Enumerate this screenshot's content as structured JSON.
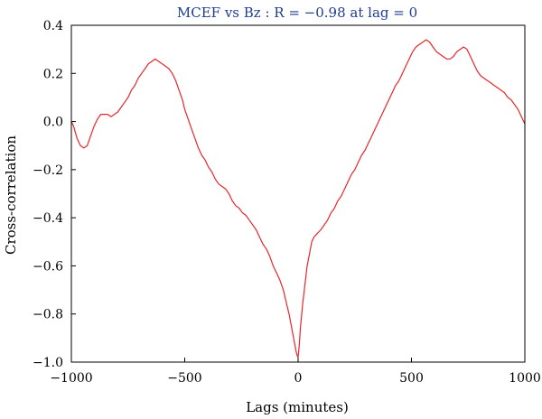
{
  "chart_data": {
    "type": "line",
    "title": "MCEF vs Bz : R = −0.98 at lag = 0",
    "xlabel": "Lags (minutes)",
    "ylabel": "Cross-correlation",
    "xlim": [
      -1000,
      1000
    ],
    "ylim": [
      -1.0,
      0.4
    ],
    "xticks": [
      -1000,
      -500,
      0,
      500,
      1000
    ],
    "xtick_labels": [
      "−1000",
      "−500",
      "0",
      "500",
      "1000"
    ],
    "yticks": [
      0.4,
      0.2,
      0.0,
      -0.2,
      -0.4,
      -0.6,
      -0.8,
      -1.0
    ],
    "ytick_labels": [
      "0.4",
      "0.2",
      "0.0",
      "−0.2",
      "−0.4",
      "−0.6",
      "−0.8",
      "−1.0"
    ],
    "grid": false,
    "colors": {
      "line": "#e8262b",
      "title": "#1f3c8f",
      "axis": "#000000"
    },
    "series": [
      {
        "x": [
          -1000,
          -990,
          -975,
          -960,
          -945,
          -930,
          -915,
          -900,
          -885,
          -870,
          -855,
          -840,
          -825,
          -810,
          -795,
          -780,
          -765,
          -750,
          -735,
          -720,
          -705,
          -690,
          -675,
          -660,
          -645,
          -630,
          -615,
          -600,
          -585,
          -570,
          -555,
          -540,
          -525,
          -510,
          -500,
          -485,
          -470,
          -455,
          -440,
          -425,
          -410,
          -395,
          -380,
          -365,
          -350,
          -335,
          -320,
          -305,
          -290,
          -275,
          -260,
          -245,
          -230,
          -215,
          -200,
          -185,
          -170,
          -155,
          -140,
          -125,
          -110,
          -95,
          -80,
          -65,
          -50,
          -40,
          -30,
          -20,
          -10,
          -5,
          0,
          5,
          10,
          20,
          30,
          40,
          50,
          60,
          70,
          80,
          90,
          100,
          115,
          130,
          145,
          160,
          175,
          190,
          205,
          220,
          235,
          250,
          265,
          280,
          295,
          310,
          325,
          340,
          355,
          370,
          385,
          400,
          415,
          430,
          445,
          460,
          475,
          490,
          505,
          520,
          535,
          550,
          565,
          580,
          595,
          610,
          625,
          640,
          655,
          670,
          685,
          700,
          715,
          730,
          745,
          760,
          775,
          790,
          805,
          820,
          835,
          850,
          865,
          880,
          895,
          910,
          925,
          940,
          955,
          970,
          985,
          1000
        ],
        "values": [
          0.0,
          -0.02,
          -0.07,
          -0.1,
          -0.11,
          -0.1,
          -0.06,
          -0.02,
          0.01,
          0.03,
          0.03,
          0.03,
          0.02,
          0.03,
          0.04,
          0.06,
          0.08,
          0.1,
          0.13,
          0.15,
          0.18,
          0.2,
          0.22,
          0.24,
          0.25,
          0.26,
          0.25,
          0.24,
          0.23,
          0.22,
          0.2,
          0.17,
          0.13,
          0.09,
          0.05,
          0.01,
          -0.03,
          -0.07,
          -0.11,
          -0.14,
          -0.16,
          -0.19,
          -0.21,
          -0.24,
          -0.26,
          -0.27,
          -0.28,
          -0.3,
          -0.33,
          -0.35,
          -0.36,
          -0.38,
          -0.39,
          -0.41,
          -0.43,
          -0.45,
          -0.48,
          -0.51,
          -0.53,
          -0.56,
          -0.6,
          -0.63,
          -0.66,
          -0.7,
          -0.76,
          -0.8,
          -0.85,
          -0.9,
          -0.95,
          -0.97,
          -0.98,
          -0.93,
          -0.86,
          -0.76,
          -0.68,
          -0.6,
          -0.55,
          -0.5,
          -0.48,
          -0.47,
          -0.46,
          -0.45,
          -0.43,
          -0.41,
          -0.38,
          -0.36,
          -0.33,
          -0.31,
          -0.28,
          -0.25,
          -0.22,
          -0.2,
          -0.17,
          -0.14,
          -0.12,
          -0.09,
          -0.06,
          -0.03,
          0.0,
          0.03,
          0.06,
          0.09,
          0.12,
          0.15,
          0.17,
          0.2,
          0.23,
          0.26,
          0.29,
          0.31,
          0.32,
          0.33,
          0.34,
          0.33,
          0.31,
          0.29,
          0.28,
          0.27,
          0.26,
          0.26,
          0.27,
          0.29,
          0.3,
          0.31,
          0.3,
          0.27,
          0.24,
          0.21,
          0.19,
          0.18,
          0.17,
          0.16,
          0.15,
          0.14,
          0.13,
          0.12,
          0.1,
          0.09,
          0.07,
          0.05,
          0.02,
          -0.01
        ]
      }
    ]
  }
}
